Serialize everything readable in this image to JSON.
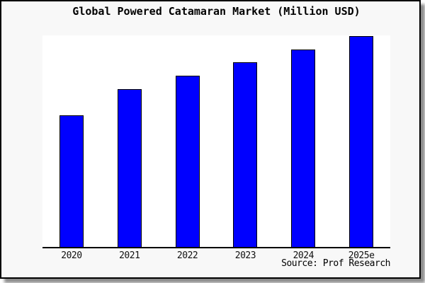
{
  "chart_data": {
    "type": "bar",
    "title": "Global Powered Catamaran Market (Million USD)",
    "categories": [
      "2020",
      "2021",
      "2022",
      "2023",
      "2024",
      "2025e"
    ],
    "values": [
      188,
      225,
      244,
      263,
      281,
      300
    ],
    "xlabel": "",
    "ylabel": "",
    "ylim": [
      0,
      300
    ],
    "grid": false,
    "legend": false,
    "y_axis_visible": false,
    "annotation": "Source: Prof Research",
    "bar_color": "#0000ff",
    "bar_edge_color": "#000000",
    "figure_background": "#f8f8f8",
    "plot_background": "#ffffff"
  }
}
